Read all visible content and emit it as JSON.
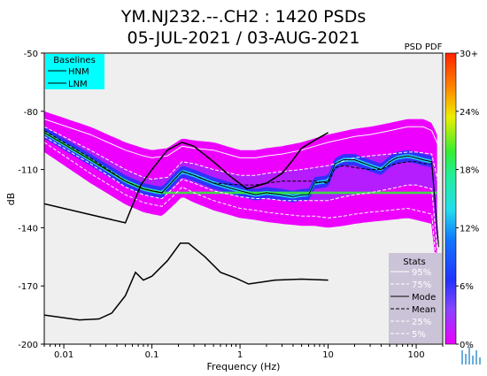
{
  "title_line1": "YM.NJ232.--.CH2 : 1420 PSDs",
  "title_line2": "05-JUL-2021 / 03-AUG-2021",
  "colorbar_title": "PSD PDF",
  "colors": {
    "plot_bg": "#efefef",
    "baseline_box": "#00ffff",
    "stats_box": "#cbc3d8",
    "pdf_purple": "#ee00ff",
    "pdf_blue": "#2233ff",
    "pdf_cyan": "#22ddee",
    "pdf_green": "#33ee33",
    "pdf_yellow": "#eeee00",
    "pdf_red": "#ff2200"
  },
  "chart_data": {
    "type": "area",
    "xlabel": "Frequency (Hz)",
    "ylabel": "dB",
    "x_scale": "log",
    "xlim": [
      0.006,
      200
    ],
    "ylim": [
      -200,
      -50
    ],
    "x_ticks": [
      0.01,
      0.1,
      1,
      10,
      100
    ],
    "x_tick_labels": [
      "0.01",
      "0.1",
      "1",
      "10",
      "100"
    ],
    "y_ticks": [
      -50,
      -80,
      -110,
      -140,
      -170,
      -200
    ],
    "y_tick_labels": [
      "-50",
      "-80",
      "-110",
      "-140",
      "-170",
      "-200"
    ],
    "grid": false,
    "colorbar": {
      "label": "PSD PDF",
      "ticks": [
        "0%",
        "6%",
        "12%",
        "18%",
        "24%",
        "30+"
      ],
      "range": [
        0,
        30
      ]
    },
    "baselines": {
      "title": "Baselines",
      "entries": [
        "HNM",
        "LNM"
      ],
      "placement": "top-left",
      "HNM": [
        [
          0.006,
          -127.7
        ],
        [
          0.05,
          -137.5
        ],
        [
          0.075,
          -118
        ],
        [
          0.1,
          -110
        ],
        [
          0.15,
          -100
        ],
        [
          0.22,
          -96
        ],
        [
          0.3,
          -98
        ],
        [
          0.5,
          -106
        ],
        [
          0.8,
          -114
        ],
        [
          1.2,
          -120
        ],
        [
          2,
          -117
        ],
        [
          3,
          -112
        ],
        [
          4,
          -105
        ],
        [
          5,
          -99
        ],
        [
          7,
          -95
        ],
        [
          10,
          -91
        ]
      ],
      "LNM": [
        [
          0.006,
          -185
        ],
        [
          0.015,
          -187.5
        ],
        [
          0.025,
          -187
        ],
        [
          0.035,
          -184
        ],
        [
          0.05,
          -175
        ],
        [
          0.065,
          -163
        ],
        [
          0.08,
          -167
        ],
        [
          0.1,
          -165
        ],
        [
          0.15,
          -157
        ],
        [
          0.21,
          -148
        ],
        [
          0.26,
          -148
        ],
        [
          0.4,
          -155
        ],
        [
          0.6,
          -163
        ],
        [
          0.9,
          -166
        ],
        [
          1.25,
          -169
        ],
        [
          2.5,
          -167
        ],
        [
          5,
          -166.5
        ],
        [
          10,
          -167
        ]
      ]
    },
    "stats": {
      "title": "Stats",
      "entries": [
        "95%",
        "75%",
        "Mode",
        "Mean",
        "25%",
        "5%"
      ],
      "placement": "bottom-right",
      "mode": [
        [
          0.006,
          -91
        ],
        [
          0.02,
          -105
        ],
        [
          0.05,
          -116
        ],
        [
          0.08,
          -120
        ],
        [
          0.1,
          -121
        ],
        [
          0.13,
          -122
        ],
        [
          0.18,
          -115
        ],
        [
          0.22,
          -111
        ],
        [
          0.3,
          -113
        ],
        [
          0.5,
          -117
        ],
        [
          1,
          -121
        ],
        [
          1.5,
          -123
        ],
        [
          2,
          -122
        ],
        [
          3,
          -123
        ],
        [
          4,
          -124
        ],
        [
          5,
          -123
        ],
        [
          6,
          -123
        ],
        [
          7,
          -117
        ],
        [
          10,
          -116
        ],
        [
          12,
          -107
        ],
        [
          15,
          -105
        ],
        [
          20,
          -105
        ],
        [
          30,
          -108
        ],
        [
          40,
          -110
        ],
        [
          50,
          -106
        ],
        [
          60,
          -104
        ],
        [
          80,
          -103
        ],
        [
          100,
          -104
        ],
        [
          120,
          -105
        ],
        [
          150,
          -106
        ],
        [
          180,
          -150
        ]
      ],
      "mean": [
        [
          0.006,
          -90
        ],
        [
          0.02,
          -104
        ],
        [
          0.05,
          -116
        ],
        [
          0.08,
          -120
        ],
        [
          0.1,
          -121
        ],
        [
          0.13,
          -122
        ],
        [
          0.18,
          -115
        ],
        [
          0.22,
          -111
        ],
        [
          0.3,
          -113
        ],
        [
          0.5,
          -117
        ],
        [
          1,
          -118
        ],
        [
          1.5,
          -118
        ],
        [
          2,
          -117
        ],
        [
          3,
          -116
        ],
        [
          5,
          -116
        ],
        [
          7,
          -116
        ],
        [
          10,
          -117
        ],
        [
          12,
          -109
        ],
        [
          15,
          -108
        ],
        [
          20,
          -109
        ],
        [
          30,
          -110
        ],
        [
          40,
          -110
        ],
        [
          50,
          -108
        ],
        [
          60,
          -107
        ],
        [
          80,
          -106
        ],
        [
          100,
          -106
        ],
        [
          120,
          -107
        ],
        [
          150,
          -107
        ],
        [
          180,
          -149
        ]
      ],
      "p95": [
        [
          0.006,
          -84
        ],
        [
          0.02,
          -92
        ],
        [
          0.05,
          -100
        ],
        [
          0.08,
          -103
        ],
        [
          0.1,
          -104
        ],
        [
          0.15,
          -103
        ],
        [
          0.22,
          -98
        ],
        [
          0.3,
          -99
        ],
        [
          0.5,
          -100
        ],
        [
          1,
          -104
        ],
        [
          1.5,
          -104
        ],
        [
          2,
          -103
        ],
        [
          3,
          -102
        ],
        [
          5,
          -100
        ],
        [
          7,
          -98
        ],
        [
          10,
          -96
        ],
        [
          20,
          -93
        ],
        [
          30,
          -92
        ],
        [
          50,
          -90
        ],
        [
          80,
          -88
        ],
        [
          100,
          -88
        ],
        [
          120,
          -88
        ],
        [
          150,
          -90
        ],
        [
          180,
          -98
        ]
      ],
      "p75": [
        [
          0.006,
          -88
        ],
        [
          0.02,
          -100
        ],
        [
          0.05,
          -110
        ],
        [
          0.08,
          -114
        ],
        [
          0.1,
          -115
        ],
        [
          0.15,
          -114
        ],
        [
          0.22,
          -106
        ],
        [
          0.3,
          -107
        ],
        [
          0.5,
          -110
        ],
        [
          1,
          -113
        ],
        [
          1.5,
          -113
        ],
        [
          2,
          -112
        ],
        [
          3,
          -111
        ],
        [
          5,
          -110
        ],
        [
          7,
          -109
        ],
        [
          10,
          -108
        ],
        [
          20,
          -104
        ],
        [
          30,
          -103
        ],
        [
          50,
          -102
        ],
        [
          80,
          -101
        ],
        [
          100,
          -101
        ],
        [
          150,
          -102
        ],
        [
          180,
          -118
        ]
      ],
      "p25": [
        [
          0.006,
          -93
        ],
        [
          0.02,
          -107
        ],
        [
          0.05,
          -119
        ],
        [
          0.08,
          -123
        ],
        [
          0.1,
          -124
        ],
        [
          0.13,
          -125
        ],
        [
          0.18,
          -119
        ],
        [
          0.22,
          -115
        ],
        [
          0.3,
          -117
        ],
        [
          0.5,
          -121
        ],
        [
          1,
          -124
        ],
        [
          1.5,
          -125
        ],
        [
          2,
          -125
        ],
        [
          3,
          -126
        ],
        [
          5,
          -126
        ],
        [
          7,
          -126
        ],
        [
          10,
          -126
        ],
        [
          15,
          -124
        ],
        [
          20,
          -123
        ],
        [
          30,
          -122
        ],
        [
          50,
          -120
        ],
        [
          80,
          -118
        ],
        [
          100,
          -118
        ],
        [
          150,
          -120
        ],
        [
          180,
          -160
        ]
      ],
      "p5": [
        [
          0.006,
          -96
        ],
        [
          0.02,
          -112
        ],
        [
          0.05,
          -123
        ],
        [
          0.08,
          -127
        ],
        [
          0.1,
          -128
        ],
        [
          0.13,
          -129
        ],
        [
          0.18,
          -123
        ],
        [
          0.22,
          -119
        ],
        [
          0.3,
          -122
        ],
        [
          0.5,
          -126
        ],
        [
          1,
          -130
        ],
        [
          1.5,
          -131
        ],
        [
          2,
          -132
        ],
        [
          3,
          -133
        ],
        [
          5,
          -134
        ],
        [
          7,
          -134
        ],
        [
          10,
          -135
        ],
        [
          15,
          -134
        ],
        [
          20,
          -133
        ],
        [
          30,
          -132
        ],
        [
          50,
          -131
        ],
        [
          80,
          -130
        ],
        [
          100,
          -131
        ],
        [
          150,
          -133
        ],
        [
          180,
          -170
        ]
      ]
    }
  }
}
